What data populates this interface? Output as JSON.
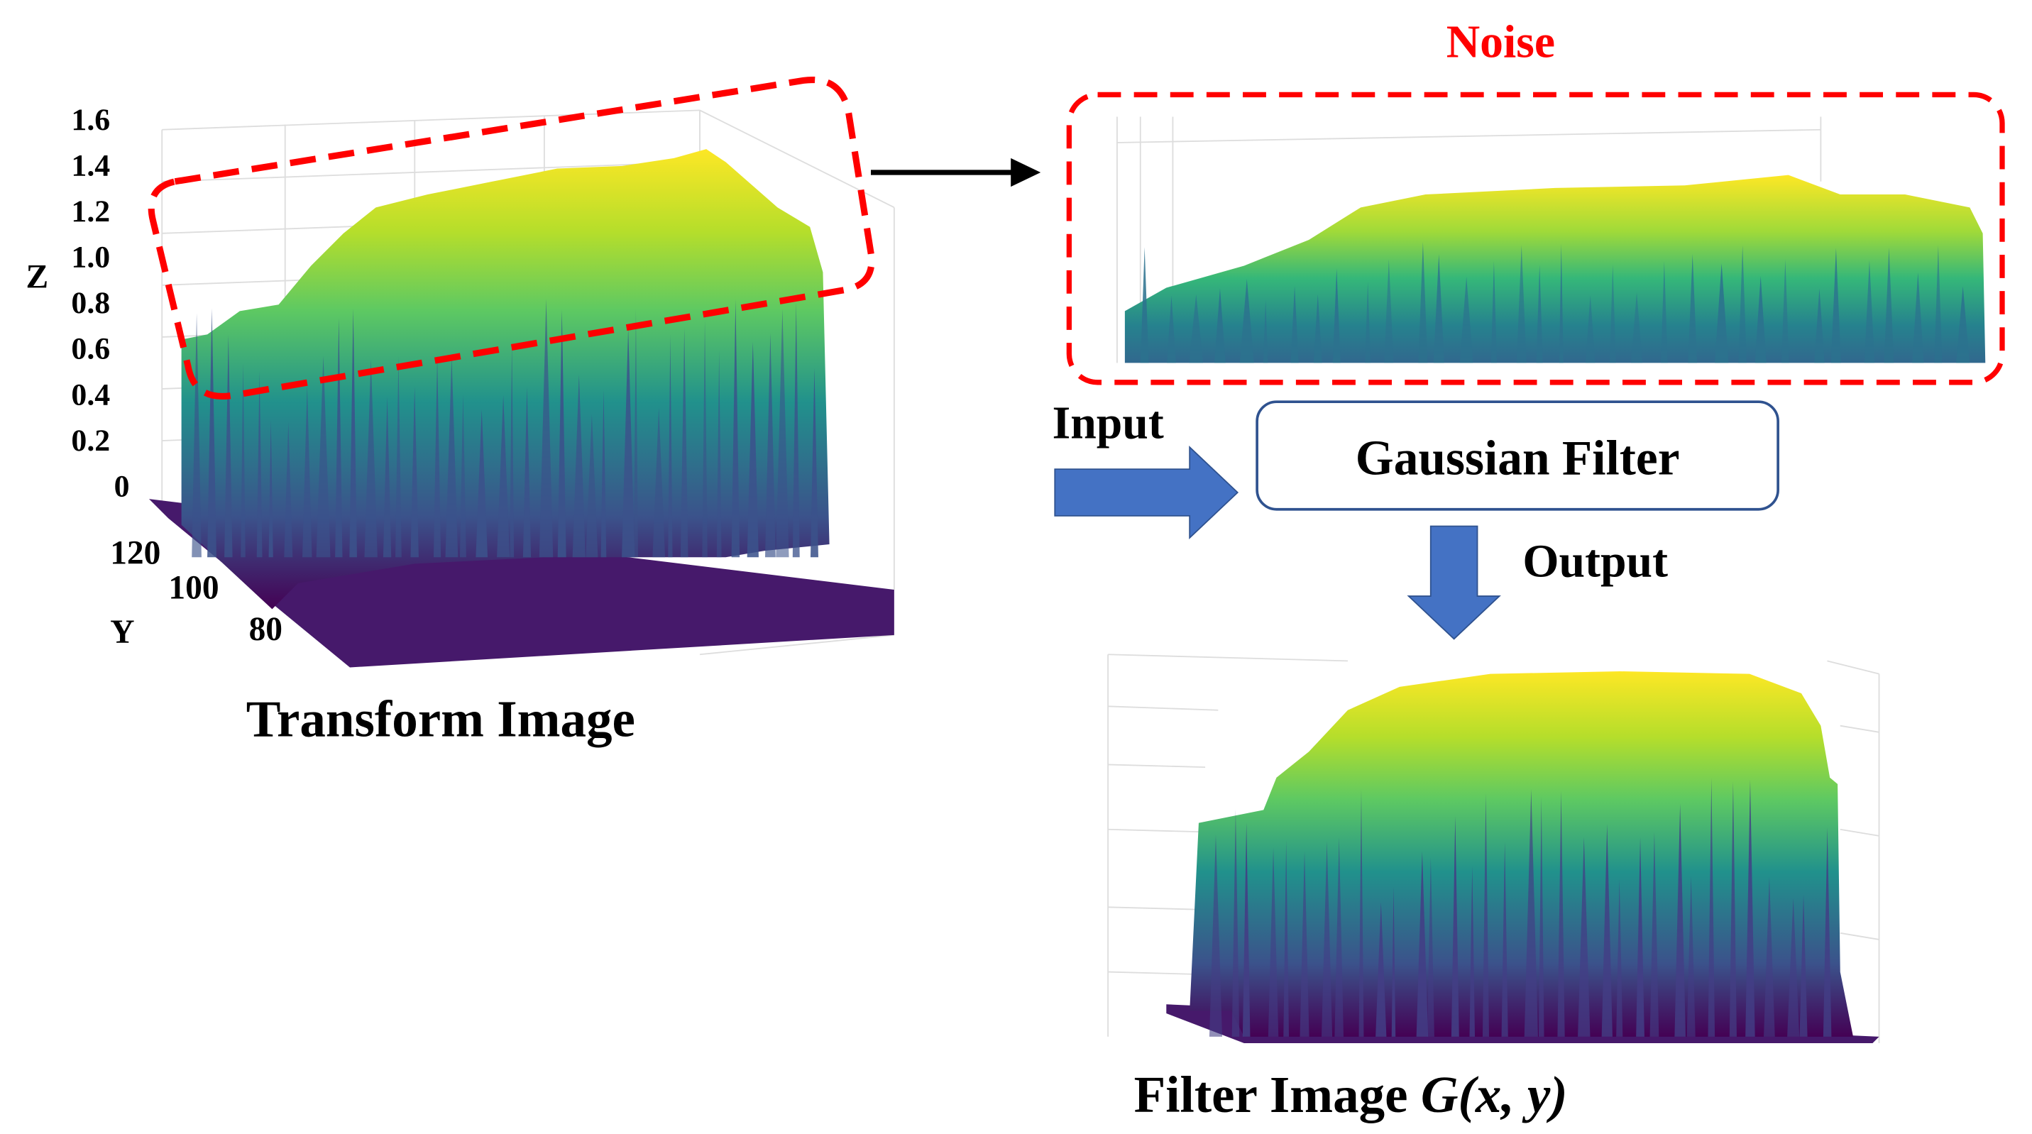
{
  "noise_label": "Noise",
  "input_label": "Input",
  "filter_box": "Gaussian Filter",
  "output_label": "Output",
  "left_plot": {
    "caption": "Transform Image",
    "z_axis_title": "Z",
    "z_ticks": [
      "1.6",
      "1.4",
      "1.2",
      "1.0",
      "0.8",
      "0.6",
      "0.4",
      "0.2",
      "0"
    ],
    "y_axis_title": "Y",
    "y_ticks": [
      "120",
      "100",
      "80"
    ]
  },
  "bottom_plot": {
    "caption": "Filter Image ",
    "caption_math": "G(x, y)"
  }
}
